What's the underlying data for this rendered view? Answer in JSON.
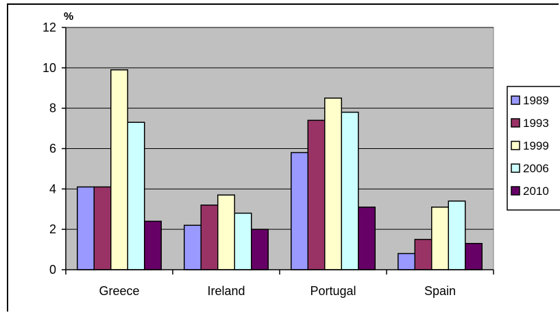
{
  "chart_data": {
    "type": "bar",
    "title": "",
    "ylabel": "%",
    "xlabel": "",
    "ylim": [
      0,
      12
    ],
    "yticks": [
      0,
      2,
      4,
      6,
      8,
      10,
      12
    ],
    "grid": true,
    "legend_position": "right",
    "categories": [
      "Greece",
      "Ireland",
      "Portugal",
      "Spain"
    ],
    "series": [
      {
        "name": "1989",
        "values": [
          4.1,
          2.2,
          5.8,
          0.8
        ],
        "color": "#9999ff"
      },
      {
        "name": "1993",
        "values": [
          4.1,
          3.2,
          7.4,
          1.5
        ],
        "color": "#993366"
      },
      {
        "name": "1999",
        "values": [
          9.9,
          3.7,
          8.5,
          3.1
        ],
        "color": "#ffffcc"
      },
      {
        "name": "2006",
        "values": [
          7.3,
          2.8,
          7.8,
          3.4
        ],
        "color": "#ccffff"
      },
      {
        "name": "2010",
        "values": [
          2.4,
          2.0,
          3.1,
          1.3
        ],
        "color": "#660066"
      }
    ],
    "plot_background": "#c0c0c0"
  }
}
